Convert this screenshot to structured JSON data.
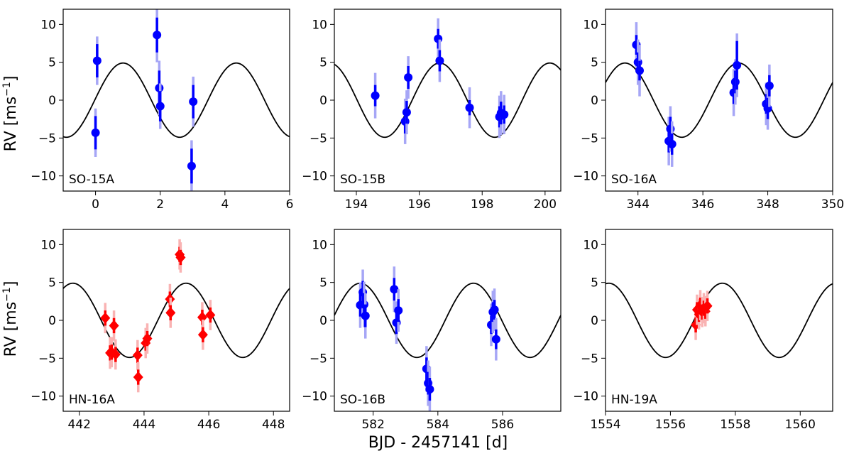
{
  "figure": {
    "ylabel_main": "RV [ms",
    "ylabel_exp": "−1",
    "ylabel_end": "]",
    "xlabel": "BJD - 2457141 [d]"
  },
  "colors": {
    "blue": "#0000ff",
    "red": "#ff0000",
    "curve": "#000000"
  },
  "chart_data": [
    {
      "type": "scatter",
      "label": "SO-15A",
      "marker": "circle",
      "color": "blue",
      "xlim": [
        -1,
        6
      ],
      "ylim": [
        -12,
        12
      ],
      "xticks": [
        0,
        2,
        4,
        6
      ],
      "xtick_labels": [
        "0",
        "2",
        "4",
        "6"
      ],
      "yticks": [
        10,
        5,
        0,
        -5,
        -10
      ],
      "ytick_labels": [
        "10",
        "5",
        "0",
        "−5",
        "−10"
      ],
      "model": {
        "amplitude": 4.9,
        "period": 3.5,
        "t_max": 0.85
      },
      "points": [
        {
          "x": 0.05,
          "y": 5.2,
          "e1": 2.2,
          "e2": 3.2
        },
        {
          "x": 0.0,
          "y": -4.3,
          "e1": 2.2,
          "e2": 3.2
        },
        {
          "x": 1.9,
          "y": 8.6,
          "e1": 2.3,
          "e2": 3.6
        },
        {
          "x": 1.97,
          "y": 1.6,
          "e1": 2.3,
          "e2": 3.6
        },
        {
          "x": 2.0,
          "y": -0.8,
          "e1": 2.0,
          "e2": 3.0
        },
        {
          "x": 2.97,
          "y": -8.7,
          "e1": 2.3,
          "e2": 3.4
        },
        {
          "x": 3.02,
          "y": -0.2,
          "e1": 2.2,
          "e2": 3.3
        }
      ]
    },
    {
      "type": "scatter",
      "label": "SO-15B",
      "marker": "circle",
      "color": "blue",
      "xlim": [
        193.3,
        200.5
      ],
      "ylim": [
        -12,
        12
      ],
      "xticks": [
        194,
        196,
        198,
        200
      ],
      "xtick_labels": [
        "194",
        "196",
        "198",
        "200"
      ],
      "yticks": [
        10,
        5,
        0,
        -5,
        -10
      ],
      "ytick_labels": [
        "10",
        "5",
        "0",
        "−5",
        "−10"
      ],
      "model": {
        "amplitude": 4.9,
        "period": 3.5,
        "t_max": 196.65
      },
      "points": [
        {
          "x": 194.6,
          "y": 0.6,
          "e1": 1.4,
          "e2": 3.0
        },
        {
          "x": 195.55,
          "y": -2.8,
          "e1": 1.6,
          "e2": 3.0
        },
        {
          "x": 195.6,
          "y": -1.6,
          "e1": 1.5,
          "e2": 2.9
        },
        {
          "x": 195.65,
          "y": 3.0,
          "e1": 1.5,
          "e2": 2.8
        },
        {
          "x": 196.6,
          "y": 8.1,
          "e1": 1.3,
          "e2": 2.7
        },
        {
          "x": 196.65,
          "y": 5.2,
          "e1": 1.4,
          "e2": 2.8
        },
        {
          "x": 197.6,
          "y": -1.0,
          "e1": 1.0,
          "e2": 2.7
        },
        {
          "x": 198.55,
          "y": -2.2,
          "e1": 1.4,
          "e2": 2.8
        },
        {
          "x": 198.6,
          "y": -1.7,
          "e1": 1.5,
          "e2": 2.9
        },
        {
          "x": 198.7,
          "y": -1.9,
          "e1": 1.2,
          "e2": 2.6
        }
      ]
    },
    {
      "type": "scatter",
      "label": "SO-16A",
      "marker": "circle",
      "color": "blue",
      "xlim": [
        343,
        350
      ],
      "ylim": [
        -12,
        12
      ],
      "xticks": [
        344,
        346,
        348,
        350
      ],
      "xtick_labels": [
        "344",
        "346",
        "348",
        "350"
      ],
      "yticks": [
        10,
        5,
        0,
        -5,
        -10
      ],
      "ytick_labels": [
        "10",
        "5",
        "0",
        "−5",
        "−10"
      ],
      "model": {
        "amplitude": 4.9,
        "period": 3.5,
        "t_max": 347.1
      },
      "points": [
        {
          "x": 343.95,
          "y": 7.3,
          "e1": 1.3,
          "e2": 3.0
        },
        {
          "x": 344.0,
          "y": 5.0,
          "e1": 1.3,
          "e2": 3.0
        },
        {
          "x": 344.05,
          "y": 3.9,
          "e1": 1.3,
          "e2": 3.4
        },
        {
          "x": 344.95,
          "y": -5.4,
          "e1": 1.5,
          "e2": 3.2
        },
        {
          "x": 345.0,
          "y": -3.8,
          "e1": 1.6,
          "e2": 3.0
        },
        {
          "x": 345.05,
          "y": -5.8,
          "e1": 1.4,
          "e2": 3.0
        },
        {
          "x": 346.95,
          "y": 1.0,
          "e1": 1.5,
          "e2": 3.1
        },
        {
          "x": 347.0,
          "y": 2.4,
          "e1": 1.5,
          "e2": 3.0
        },
        {
          "x": 347.05,
          "y": 4.6,
          "e1": 3.2,
          "e2": 4.2
        },
        {
          "x": 347.95,
          "y": -0.5,
          "e1": 1.3,
          "e2": 2.8
        },
        {
          "x": 348.0,
          "y": -1.1,
          "e1": 1.4,
          "e2": 2.8
        },
        {
          "x": 348.05,
          "y": 1.9,
          "e1": 1.4,
          "e2": 2.8
        }
      ]
    },
    {
      "type": "scatter",
      "label": "HN-16A",
      "marker": "diamond",
      "color": "red",
      "xlim": [
        441.5,
        448.5
      ],
      "ylim": [
        -12,
        12
      ],
      "xticks": [
        442,
        444,
        446,
        448
      ],
      "xtick_labels": [
        "442",
        "444",
        "446",
        "448"
      ],
      "yticks": [
        10,
        5,
        0,
        -5,
        -10
      ],
      "ytick_labels": [
        "10",
        "5",
        "0",
        "−5",
        "−10"
      ],
      "model": {
        "amplitude": 4.9,
        "period": 3.5,
        "t_max": 445.3
      },
      "points": [
        {
          "x": 442.8,
          "y": 0.3,
          "e1": 1.0,
          "e2": 2.0
        },
        {
          "x": 442.95,
          "y": -4.3,
          "e1": 1.0,
          "e2": 2.1
        },
        {
          "x": 443.0,
          "y": -4.2,
          "e1": 1.0,
          "e2": 2.0
        },
        {
          "x": 443.07,
          "y": -0.7,
          "e1": 1.0,
          "e2": 2.0
        },
        {
          "x": 443.12,
          "y": -4.5,
          "e1": 1.0,
          "e2": 2.0
        },
        {
          "x": 443.8,
          "y": -4.6,
          "e1": 1.0,
          "e2": 2.0
        },
        {
          "x": 443.82,
          "y": -7.5,
          "e1": 1.0,
          "e2": 2.0
        },
        {
          "x": 444.05,
          "y": -3.0,
          "e1": 1.0,
          "e2": 2.0
        },
        {
          "x": 444.1,
          "y": -2.4,
          "e1": 1.0,
          "e2": 2.0
        },
        {
          "x": 444.8,
          "y": 2.8,
          "e1": 1.0,
          "e2": 2.0
        },
        {
          "x": 444.82,
          "y": 1.0,
          "e1": 1.0,
          "e2": 2.0
        },
        {
          "x": 445.1,
          "y": 8.7,
          "e1": 1.0,
          "e2": 2.0
        },
        {
          "x": 445.13,
          "y": 8.3,
          "e1": 1.0,
          "e2": 2.0
        },
        {
          "x": 445.8,
          "y": 0.4,
          "e1": 1.0,
          "e2": 2.0
        },
        {
          "x": 445.82,
          "y": -1.9,
          "e1": 1.0,
          "e2": 2.0
        },
        {
          "x": 446.05,
          "y": 0.7,
          "e1": 1.0,
          "e2": 2.0
        }
      ]
    },
    {
      "type": "scatter",
      "label": "SO-16B",
      "marker": "circle",
      "color": "blue",
      "xlim": [
        580.8,
        587.8
      ],
      "ylim": [
        -12,
        12
      ],
      "xticks": [
        582,
        584,
        586
      ],
      "xtick_labels": [
        "582",
        "584",
        "586"
      ],
      "yticks": [
        10,
        5,
        0,
        -5,
        -10
      ],
      "ytick_labels": [
        "10",
        "5",
        "0",
        "−5",
        "−10"
      ],
      "model": {
        "amplitude": 4.9,
        "period": 3.5,
        "t_max": 581.6
      },
      "points": [
        {
          "x": 581.6,
          "y": 2.0,
          "e1": 1.5,
          "e2": 3.0
        },
        {
          "x": 581.68,
          "y": 3.7,
          "e1": 1.5,
          "e2": 3.0
        },
        {
          "x": 581.72,
          "y": 2.1,
          "e1": 1.5,
          "e2": 3.0
        },
        {
          "x": 581.76,
          "y": 0.6,
          "e1": 1.5,
          "e2": 3.0
        },
        {
          "x": 582.65,
          "y": 4.1,
          "e1": 1.5,
          "e2": 3.0
        },
        {
          "x": 582.72,
          "y": -0.3,
          "e1": 1.5,
          "e2": 2.8
        },
        {
          "x": 582.78,
          "y": 1.3,
          "e1": 1.5,
          "e2": 2.8
        },
        {
          "x": 583.65,
          "y": -6.4,
          "e1": 1.5,
          "e2": 3.0
        },
        {
          "x": 583.7,
          "y": -8.3,
          "e1": 1.5,
          "e2": 3.0
        },
        {
          "x": 583.75,
          "y": -9.1,
          "e1": 1.5,
          "e2": 3.0
        },
        {
          "x": 585.65,
          "y": -0.6,
          "e1": 1.2,
          "e2": 2.8
        },
        {
          "x": 585.7,
          "y": 1.1,
          "e1": 1.3,
          "e2": 2.8
        },
        {
          "x": 585.75,
          "y": 1.4,
          "e1": 1.3,
          "e2": 2.8
        },
        {
          "x": 585.8,
          "y": -2.5,
          "e1": 1.3,
          "e2": 2.8
        }
      ]
    },
    {
      "type": "scatter",
      "label": "HN-19A",
      "marker": "diamond",
      "color": "red",
      "xlim": [
        1554,
        1561
      ],
      "ylim": [
        -12,
        12
      ],
      "xticks": [
        1554,
        1556,
        1558,
        1560
      ],
      "xtick_labels": [
        "1554",
        "1556",
        "1558",
        "1560"
      ],
      "yticks": [
        10,
        5,
        0,
        -5,
        -10
      ],
      "ytick_labels": [
        "10",
        "5",
        "0",
        "−5",
        "−10"
      ],
      "model": {
        "amplitude": 4.9,
        "period": 3.5,
        "t_max": 1557.6
      },
      "points": [
        {
          "x": 1556.78,
          "y": -0.6,
          "e1": 1.0,
          "e2": 2.0
        },
        {
          "x": 1556.82,
          "y": 1.4,
          "e1": 1.0,
          "e2": 2.0
        },
        {
          "x": 1556.88,
          "y": 0.8,
          "e1": 1.0,
          "e2": 2.0
        },
        {
          "x": 1556.92,
          "y": 2.0,
          "e1": 1.0,
          "e2": 2.0
        },
        {
          "x": 1556.98,
          "y": 1.1,
          "e1": 1.0,
          "e2": 2.0
        },
        {
          "x": 1557.03,
          "y": 1.6,
          "e1": 1.0,
          "e2": 2.0
        },
        {
          "x": 1557.08,
          "y": 1.2,
          "e1": 1.0,
          "e2": 2.0
        },
        {
          "x": 1557.14,
          "y": 1.9,
          "e1": 1.0,
          "e2": 2.0
        }
      ]
    }
  ]
}
